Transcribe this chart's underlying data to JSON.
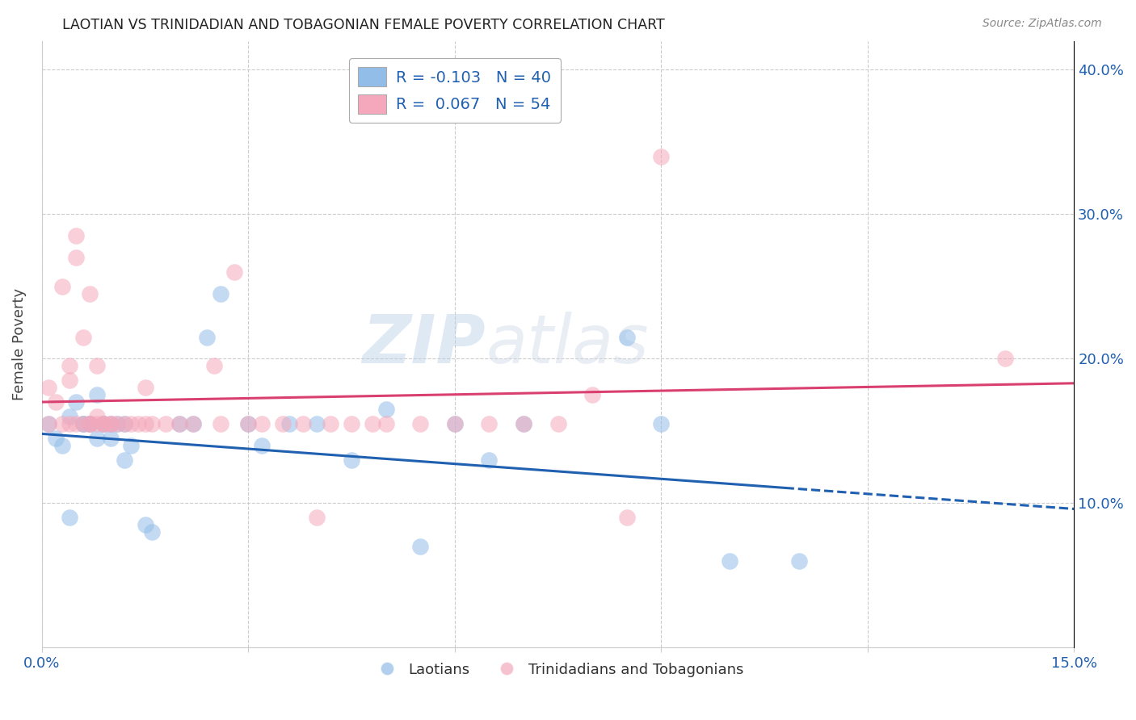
{
  "title": "LAOTIAN VS TRINIDADIAN AND TOBAGONIAN FEMALE POVERTY CORRELATION CHART",
  "source": "Source: ZipAtlas.com",
  "ylabel": "Female Poverty",
  "xlim": [
    0.0,
    0.15
  ],
  "ylim": [
    0.0,
    0.42
  ],
  "xtick_positions": [
    0.0,
    0.03,
    0.06,
    0.09,
    0.12,
    0.15
  ],
  "xtick_labels": [
    "0.0%",
    "",
    "",
    "",
    "",
    "15.0%"
  ],
  "ytick_positions": [
    0.0,
    0.1,
    0.2,
    0.3,
    0.4
  ],
  "ytick_labels_right": [
    "",
    "10.0%",
    "20.0%",
    "30.0%",
    "40.0%"
  ],
  "legend_label1": "R = -0.103   N = 40",
  "legend_label2": "R =  0.067   N = 54",
  "legend_label_bottom1": "Laotians",
  "legend_label_bottom2": "Trinidadians and Tobagonians",
  "blue_color": "#92BDE8",
  "pink_color": "#F5A8BB",
  "blue_line_color": "#2060B0",
  "pink_line_color": "#D94070",
  "grid_color": "#cccccc",
  "background_color": "#ffffff",
  "blue_x": [
    0.001,
    0.002,
    0.003,
    0.004,
    0.005,
    0.006,
    0.007,
    0.008,
    0.009,
    0.01,
    0.011,
    0.012,
    0.004,
    0.006,
    0.007,
    0.008,
    0.009,
    0.01,
    0.012,
    0.013,
    0.015,
    0.016,
    0.02,
    0.022,
    0.024,
    0.026,
    0.03,
    0.032,
    0.036,
    0.04,
    0.045,
    0.05,
    0.055,
    0.06,
    0.065,
    0.07,
    0.085,
    0.09,
    0.1,
    0.11
  ],
  "blue_y": [
    0.155,
    0.145,
    0.14,
    0.16,
    0.17,
    0.155,
    0.155,
    0.175,
    0.155,
    0.155,
    0.155,
    0.155,
    0.09,
    0.155,
    0.155,
    0.145,
    0.155,
    0.145,
    0.13,
    0.14,
    0.085,
    0.08,
    0.155,
    0.155,
    0.215,
    0.245,
    0.155,
    0.14,
    0.155,
    0.155,
    0.13,
    0.165,
    0.07,
    0.155,
    0.13,
    0.155,
    0.215,
    0.155,
    0.06,
    0.06
  ],
  "pink_x": [
    0.001,
    0.001,
    0.002,
    0.003,
    0.003,
    0.004,
    0.004,
    0.004,
    0.005,
    0.005,
    0.005,
    0.006,
    0.006,
    0.007,
    0.007,
    0.007,
    0.008,
    0.008,
    0.008,
    0.009,
    0.009,
    0.01,
    0.01,
    0.011,
    0.012,
    0.013,
    0.014,
    0.015,
    0.015,
    0.016,
    0.018,
    0.02,
    0.022,
    0.025,
    0.026,
    0.028,
    0.03,
    0.032,
    0.035,
    0.038,
    0.04,
    0.042,
    0.045,
    0.048,
    0.05,
    0.055,
    0.06,
    0.065,
    0.07,
    0.075,
    0.08,
    0.085,
    0.09,
    0.14
  ],
  "pink_y": [
    0.155,
    0.18,
    0.17,
    0.155,
    0.25,
    0.155,
    0.185,
    0.195,
    0.155,
    0.27,
    0.285,
    0.155,
    0.215,
    0.155,
    0.155,
    0.245,
    0.155,
    0.16,
    0.195,
    0.155,
    0.155,
    0.155,
    0.155,
    0.155,
    0.155,
    0.155,
    0.155,
    0.155,
    0.18,
    0.155,
    0.155,
    0.155,
    0.155,
    0.195,
    0.155,
    0.26,
    0.155,
    0.155,
    0.155,
    0.155,
    0.09,
    0.155,
    0.155,
    0.155,
    0.155,
    0.155,
    0.155,
    0.155,
    0.155,
    0.155,
    0.175,
    0.09,
    0.34,
    0.2
  ],
  "blue_line_x0": 0.0,
  "blue_line_x_solid_end": 0.108,
  "blue_line_x1": 0.15,
  "blue_line_y0": 0.148,
  "blue_line_y1": 0.096,
  "pink_line_x0": 0.0,
  "pink_line_x1": 0.15,
  "pink_line_y0": 0.17,
  "pink_line_y1": 0.183
}
